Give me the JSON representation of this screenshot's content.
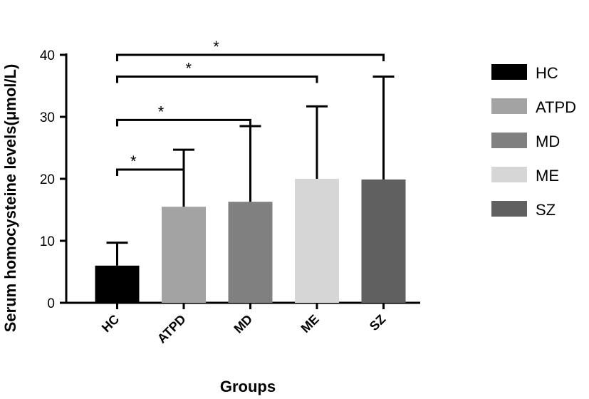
{
  "chart_data": {
    "type": "bar",
    "xlabel": "Groups",
    "ylabel": "Serum homocysteine levels(μmol/L)",
    "ylim": [
      0,
      40
    ],
    "yticks": [
      0,
      10,
      20,
      30,
      40
    ],
    "categories": [
      "HC",
      "ATPD",
      "MD",
      "ME",
      "SZ"
    ],
    "values": [
      6.0,
      15.5,
      16.3,
      20.0,
      19.9
    ],
    "errors": [
      3.7,
      9.2,
      12.2,
      11.7,
      16.6
    ],
    "colors": [
      "#000000",
      "#a3a3a3",
      "#808080",
      "#d6d6d6",
      "#606060"
    ],
    "legend": {
      "placement": "right",
      "entries": [
        "HC",
        "ATPD",
        "MD",
        "ME",
        "SZ"
      ]
    },
    "significance": [
      {
        "from": "HC",
        "to": "ATPD",
        "level": 21.5,
        "label": "*"
      },
      {
        "from": "HC",
        "to": "MD",
        "level": 29.5,
        "label": "*"
      },
      {
        "from": "HC",
        "to": "ME",
        "level": 36.5,
        "label": "*"
      },
      {
        "from": "HC",
        "to": "SZ",
        "level": 40.0,
        "label": "*"
      }
    ],
    "grid": false
  }
}
